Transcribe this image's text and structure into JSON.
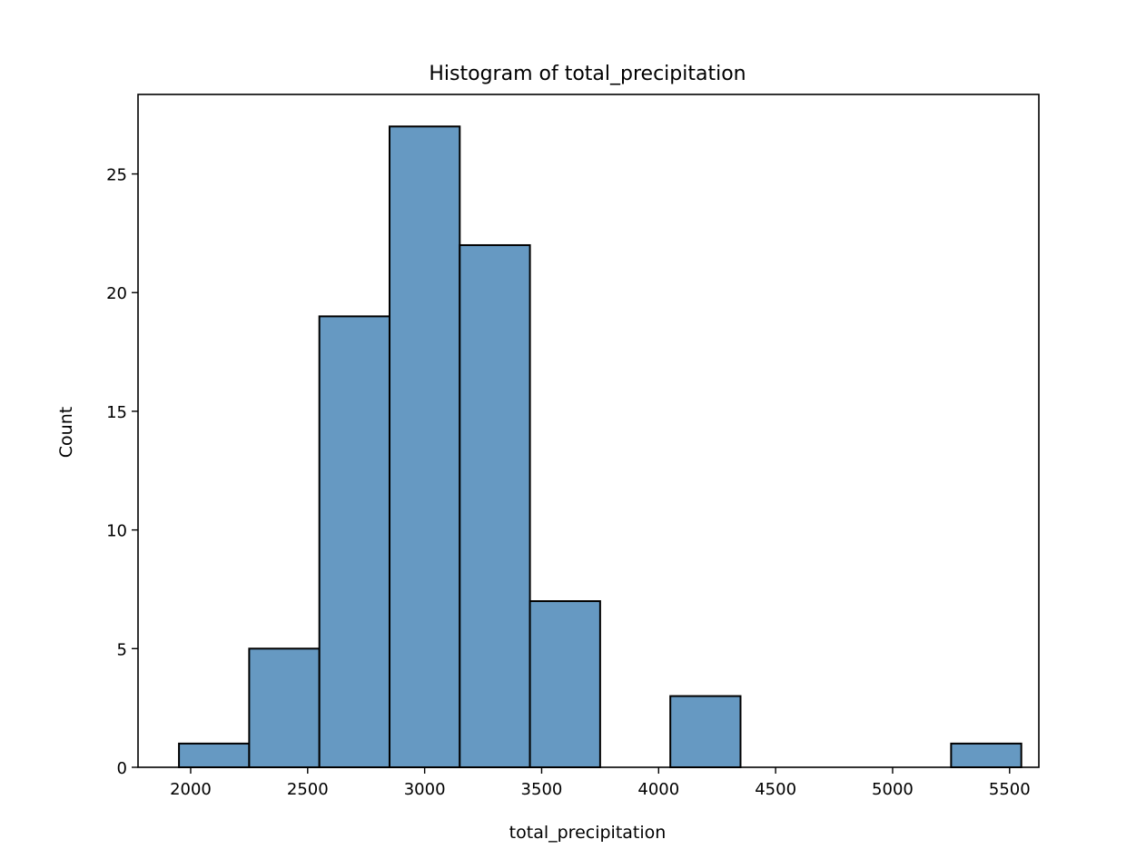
{
  "chart_data": {
    "type": "bar",
    "title": "Histogram of total_precipitation",
    "xlabel": "total_precipitation",
    "ylabel": "Count",
    "bin_edges": [
      1950,
      2250,
      2550,
      2850,
      3150,
      3450,
      3750,
      4050,
      4350,
      4650,
      4950,
      5250,
      5550
    ],
    "bins": [
      {
        "x0": 1950,
        "x1": 2250,
        "count": 1
      },
      {
        "x0": 2250,
        "x1": 2550,
        "count": 5
      },
      {
        "x0": 2550,
        "x1": 2850,
        "count": 19
      },
      {
        "x0": 2850,
        "x1": 3150,
        "count": 27
      },
      {
        "x0": 3150,
        "x1": 3450,
        "count": 22
      },
      {
        "x0": 3450,
        "x1": 3750,
        "count": 7
      },
      {
        "x0": 3750,
        "x1": 4050,
        "count": 0
      },
      {
        "x0": 4050,
        "x1": 4350,
        "count": 3
      },
      {
        "x0": 4350,
        "x1": 4650,
        "count": 0
      },
      {
        "x0": 4650,
        "x1": 4950,
        "count": 0
      },
      {
        "x0": 4950,
        "x1": 5250,
        "count": 0
      },
      {
        "x0": 5250,
        "x1": 5550,
        "count": 1
      }
    ],
    "xlim": [
      1775,
      5625
    ],
    "ylim": [
      0,
      28.35
    ],
    "xticks": [
      2000,
      2500,
      3000,
      3500,
      4000,
      4500,
      5000,
      5500
    ],
    "yticks": [
      0,
      5,
      10,
      15,
      20,
      25
    ],
    "bar_color": "#6699c2",
    "edge_color": "#000000",
    "grid": false
  }
}
